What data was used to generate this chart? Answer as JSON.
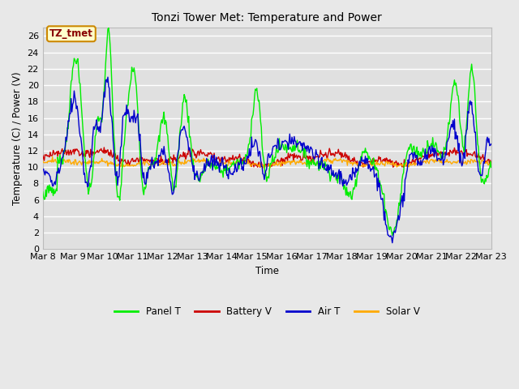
{
  "title": "Tonzi Tower Met: Temperature and Power",
  "ylabel": "Temperature (C) / Power (V)",
  "xlabel": "Time",
  "ylim": [
    0,
    27
  ],
  "yticks": [
    0,
    2,
    4,
    6,
    8,
    10,
    12,
    14,
    16,
    18,
    20,
    22,
    24,
    26
  ],
  "x_labels": [
    "Mar 8",
    "Mar 9",
    "Mar 10",
    "Mar 11",
    "Mar 12",
    "Mar 13",
    "Mar 14",
    "Mar 15",
    "Mar 16",
    "Mar 17",
    "Mar 18",
    "Mar 19",
    "Mar 20",
    "Mar 21",
    "Mar 22",
    "Mar 23"
  ],
  "annotation_text": "TZ_tmet",
  "annotation_bg": "#ffffcc",
  "annotation_border": "#cc8800",
  "annotation_text_color": "#880000",
  "panel_t_color": "#00ee00",
  "battery_v_color": "#cc0000",
  "air_t_color": "#0000cc",
  "solar_v_color": "#ffaa00",
  "fig_bg": "#e8e8e8",
  "plot_bg": "#e0e0e0",
  "grid_color": "#ffffff",
  "legend_labels": [
    "Panel T",
    "Battery V",
    "Air T",
    "Solar V"
  ]
}
